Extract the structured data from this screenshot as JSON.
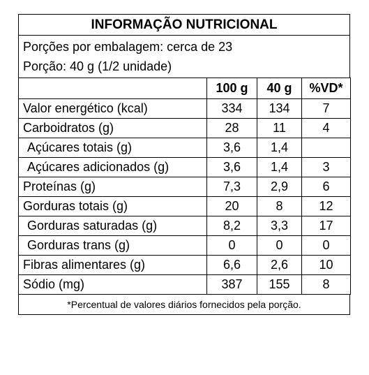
{
  "title": "INFORMAÇÃO NUTRICIONAL",
  "servings_per_package": "Porções por embalagem: cerca de 23",
  "serving_size": "Porção: 40 g (1/2 unidade)",
  "columns": [
    "",
    "100 g",
    "40 g",
    "%VD*"
  ],
  "rows": [
    {
      "name": "Valor energético (kcal)",
      "per100": "334",
      "per40": "134",
      "vd": "7",
      "indent": false
    },
    {
      "name": "Carboidratos (g)",
      "per100": "28",
      "per40": "11",
      "vd": "4",
      "indent": false
    },
    {
      "name": "Açúcares totais (g)",
      "per100": "3,6",
      "per40": "1,4",
      "vd": "",
      "indent": true
    },
    {
      "name": "Açúcares adicionados (g)",
      "per100": "3,6",
      "per40": "1,4",
      "vd": "3",
      "indent": true
    },
    {
      "name": "Proteínas (g)",
      "per100": "7,3",
      "per40": "2,9",
      "vd": "6",
      "indent": false
    },
    {
      "name": "Gorduras totais (g)",
      "per100": "20",
      "per40": "8",
      "vd": "12",
      "indent": false
    },
    {
      "name": "Gorduras saturadas (g)",
      "per100": "8,2",
      "per40": "3,3",
      "vd": "17",
      "indent": true
    },
    {
      "name": "Gorduras trans (g)",
      "per100": "0",
      "per40": "0",
      "vd": "0",
      "indent": true
    },
    {
      "name": "Fibras alimentares (g)",
      "per100": "6,6",
      "per40": "2,6",
      "vd": "10",
      "indent": false
    },
    {
      "name": "Sódio (mg)",
      "per100": "387",
      "per40": "155",
      "vd": "8",
      "indent": false
    }
  ],
  "footnote": "*Percentual de valores diários fornecidos pela porção."
}
